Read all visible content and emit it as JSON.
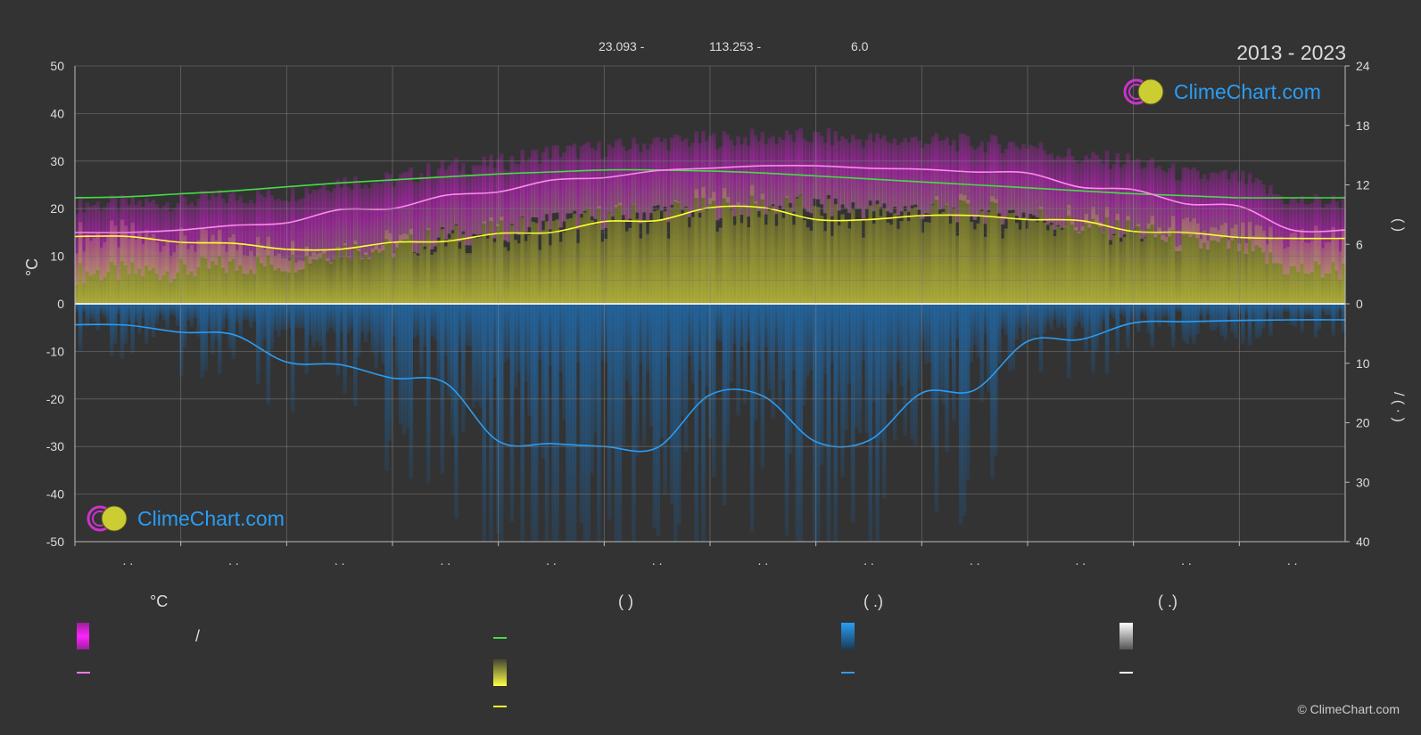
{
  "header": {
    "lat": "23.093 -",
    "lon": "113.253 -",
    "elev": "6.0",
    "period": "2013 - 2023"
  },
  "brand": {
    "name": "ClimeChart.com",
    "copyright": "© ClimeChart.com"
  },
  "colors": {
    "background": "#333333",
    "temp_max_band": "#e81ce8",
    "temp_mean": "#ff99ee",
    "daylight": "#44dd44",
    "sunshine": "#e8e83a",
    "sunshine_line": "#ffff33",
    "precip": "#1f7bc8",
    "precip_line": "#2a9df4",
    "logo_text": "#2a9df4"
  },
  "chart_data": {
    "type": "area",
    "left_axis": {
      "label": "°C",
      "ylim": [
        -50,
        50
      ],
      "ticks": [
        50,
        40,
        30,
        20,
        10,
        0,
        -10,
        -20,
        -30,
        -40,
        -50
      ]
    },
    "right_axis_top": {
      "ylim": [
        0,
        24
      ],
      "ticks": [
        24,
        18,
        12,
        6,
        0
      ],
      "label_glyphs": "( )"
    },
    "right_axis_bottom": {
      "ylim": [
        0,
        40
      ],
      "ticks": [
        10,
        20,
        30,
        40
      ],
      "label_glyphs": "/ ( · )"
    },
    "x_tick_labels": [
      ". .",
      ". .",
      ". .",
      ". .",
      ". .",
      ". .",
      ". .",
      ". .",
      ". .",
      ". .",
      ". .",
      ". ."
    ],
    "grid": true,
    "series": [
      {
        "role": "daylight",
        "axis": "right_top",
        "x": [
          0,
          0.5,
          1,
          1.5,
          2,
          2.5,
          3,
          3.5,
          4,
          4.5,
          5,
          5.5,
          6,
          6.5,
          7,
          7.5,
          8,
          8.5,
          9,
          9.5,
          10,
          10.5,
          11,
          11.5,
          12
        ],
        "values": [
          10.7,
          10.8,
          11.1,
          11.4,
          11.8,
          12.2,
          12.5,
          12.8,
          13.1,
          13.3,
          13.5,
          13.5,
          13.4,
          13.2,
          12.9,
          12.6,
          12.3,
          12.0,
          11.7,
          11.4,
          11.1,
          10.9,
          10.7,
          10.7,
          10.7
        ]
      },
      {
        "role": "temp_mean",
        "axis": "left",
        "x": [
          0,
          0.5,
          1,
          1.5,
          2,
          2.5,
          3,
          3.5,
          4,
          4.5,
          5,
          5.5,
          6,
          6.5,
          7,
          7.5,
          8,
          8.5,
          9,
          9.5,
          10,
          10.5,
          11,
          11.5,
          12
        ],
        "values": [
          15,
          15,
          15.5,
          16.5,
          17,
          19.8,
          20,
          22.8,
          23.5,
          26,
          26.5,
          28,
          28.5,
          29,
          29,
          28.5,
          28.3,
          27.7,
          27.5,
          24.5,
          24,
          21,
          20.5,
          15.5,
          15.5
        ]
      },
      {
        "role": "sunshine_mean",
        "axis": "right_top",
        "x": [
          0,
          0.5,
          1,
          1.5,
          2,
          2.5,
          3,
          3.5,
          4,
          4.5,
          5,
          5.5,
          6,
          6.5,
          7,
          7.5,
          8,
          8.5,
          9,
          9.5,
          10,
          10.5,
          11,
          11.5,
          12
        ],
        "values": [
          6.8,
          6.8,
          6.2,
          6.1,
          5.5,
          5.5,
          6.2,
          6.3,
          7.1,
          7.2,
          8.3,
          8.4,
          9.7,
          9.7,
          8.5,
          8.5,
          8.9,
          8.9,
          8.5,
          8.4,
          7.3,
          7.2,
          6.7,
          6.6,
          6.6
        ]
      },
      {
        "role": "precip_mean",
        "axis": "right_bottom",
        "x": [
          0,
          0.5,
          1,
          1.5,
          2,
          2.5,
          3,
          3.5,
          4,
          4.5,
          5,
          5.5,
          6,
          6.5,
          7,
          7.5,
          8,
          8.5,
          9,
          9.5,
          10,
          10.5,
          11,
          11.5,
          12
        ],
        "values": [
          3.5,
          3.6,
          4.8,
          5.2,
          9.8,
          10.2,
          12.5,
          13.3,
          23.1,
          23.5,
          24.0,
          24.2,
          15.3,
          15.5,
          23.2,
          23.0,
          15.0,
          14.5,
          6.3,
          6.0,
          3.2,
          3.0,
          2.8,
          2.7,
          2.7
        ]
      }
    ]
  },
  "legend": {
    "col1_head": "°C",
    "col2_head": "(          )",
    "col3_head": "(   .)",
    "col4_head": "(   .)",
    "slash": "/"
  }
}
